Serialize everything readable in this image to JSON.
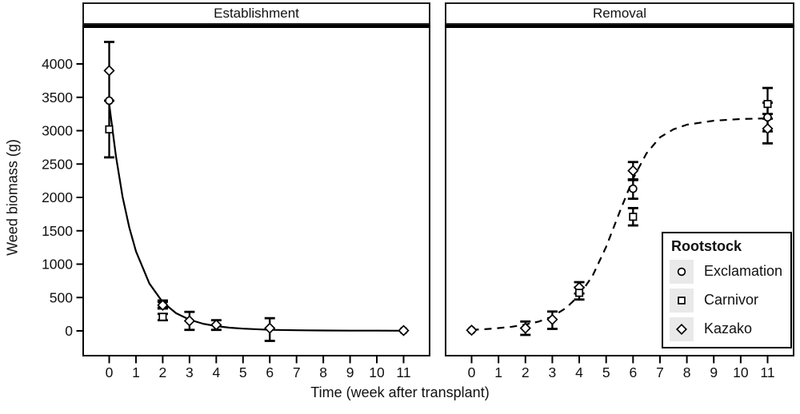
{
  "figure": {
    "xlabel": "Time (week after transplant)",
    "ylabel": "Weed biomass (g)",
    "legend": {
      "title": "Rootstock",
      "items": [
        {
          "marker": "circle",
          "label": "Exclamation"
        },
        {
          "marker": "square",
          "label": "Carnivor"
        },
        {
          "marker": "diamond",
          "label": "Kazako"
        }
      ]
    },
    "colors": {
      "foreground": "#000000",
      "background": "#ffffff",
      "legend_key_bg": "#e9e9e9"
    }
  },
  "chart_data": {
    "type": "scatter",
    "xlabel": "Time (week after transplant)",
    "ylabel": "Weed biomass (g)",
    "x_ticks": [
      0,
      1,
      2,
      3,
      4,
      5,
      6,
      7,
      8,
      9,
      10,
      11
    ],
    "y_ticks": [
      0,
      500,
      1000,
      1500,
      2000,
      2500,
      3000,
      3500,
      4000
    ],
    "xlim": [
      -1,
      12
    ],
    "ylim": [
      -380,
      4500
    ],
    "grid": false,
    "legend_position": "inside lower-right of Removal panel",
    "panels": [
      {
        "title": "Establishment",
        "line_style": "solid",
        "curve": [
          [
            0,
            3400
          ],
          [
            0.25,
            2620
          ],
          [
            0.5,
            2010
          ],
          [
            0.75,
            1550
          ],
          [
            1,
            1190
          ],
          [
            1.5,
            710
          ],
          [
            2,
            430
          ],
          [
            2.5,
            265
          ],
          [
            3,
            168
          ],
          [
            3.5,
            108
          ],
          [
            4,
            72
          ],
          [
            4.5,
            48
          ],
          [
            5,
            33
          ],
          [
            6,
            16
          ],
          [
            7,
            9
          ],
          [
            8,
            6
          ],
          [
            9,
            4
          ],
          [
            10,
            3
          ],
          [
            11,
            2
          ]
        ],
        "points": [
          {
            "series": "Kazako",
            "marker": "diamond",
            "x": 0,
            "y": 3900,
            "lo": 3450,
            "hi": 4330
          },
          {
            "series": "Exclamation",
            "marker": "circle",
            "x": 0,
            "y": 3450
          },
          {
            "series": "Carnivor",
            "marker": "square",
            "x": 0,
            "y": 3020,
            "lo": 2600,
            "hi": 3450
          },
          {
            "series": "Exclamation",
            "marker": "circle",
            "x": 2,
            "y": 400,
            "lo": 345,
            "hi": 455
          },
          {
            "series": "Kazako",
            "marker": "diamond",
            "x": 2,
            "y": 385,
            "lo": 335,
            "hi": 435
          },
          {
            "series": "Carnivor",
            "marker": "square",
            "x": 2,
            "y": 210,
            "lo": 160,
            "hi": 255
          },
          {
            "series": "Kazako",
            "marker": "diamond",
            "x": 3,
            "y": 150,
            "lo": 15,
            "hi": 285
          },
          {
            "series": "Kazako",
            "marker": "diamond",
            "x": 4,
            "y": 90,
            "lo": 15,
            "hi": 160
          },
          {
            "series": "Kazako",
            "marker": "diamond",
            "x": 6,
            "y": 40,
            "lo": -150,
            "hi": 190
          },
          {
            "series": "Exclamation",
            "marker": "circle",
            "x": 11,
            "y": 5
          },
          {
            "series": "Kazako",
            "marker": "diamond",
            "x": 11,
            "y": 5
          }
        ]
      },
      {
        "title": "Removal",
        "line_style": "dashed",
        "curve": [
          [
            0,
            15
          ],
          [
            0.5,
            25
          ],
          [
            1,
            42
          ],
          [
            1.5,
            62
          ],
          [
            2,
            95
          ],
          [
            2.5,
            140
          ],
          [
            3,
            215
          ],
          [
            3.5,
            340
          ],
          [
            4,
            530
          ],
          [
            4.5,
            830
          ],
          [
            5,
            1260
          ],
          [
            5.5,
            1780
          ],
          [
            6,
            2280
          ],
          [
            6.5,
            2660
          ],
          [
            7,
            2900
          ],
          [
            7.5,
            3020
          ],
          [
            8,
            3090
          ],
          [
            9,
            3150
          ],
          [
            10,
            3175
          ],
          [
            11,
            3185
          ]
        ],
        "points": [
          {
            "series": "Exclamation",
            "marker": "circle",
            "x": 0,
            "y": 10
          },
          {
            "series": "Kazako",
            "marker": "diamond",
            "x": 0,
            "y": 10
          },
          {
            "series": "Kazako",
            "marker": "diamond",
            "x": 2,
            "y": 40,
            "lo": -60,
            "hi": 140
          },
          {
            "series": "Kazako",
            "marker": "diamond",
            "x": 3,
            "y": 170,
            "lo": 30,
            "hi": 290
          },
          {
            "series": "Kazako",
            "marker": "diamond",
            "x": 4,
            "y": 650,
            "lo": 560,
            "hi": 730
          },
          {
            "series": "Carnivor",
            "marker": "square",
            "x": 4,
            "y": 570,
            "lo": 470,
            "hi": 650
          },
          {
            "series": "Kazako",
            "marker": "diamond",
            "x": 6,
            "y": 2400,
            "lo": 2270,
            "hi": 2530
          },
          {
            "series": "Exclamation",
            "marker": "circle",
            "x": 6,
            "y": 2130,
            "lo": 1980,
            "hi": 2260
          },
          {
            "series": "Carnivor",
            "marker": "square",
            "x": 6,
            "y": 1710,
            "lo": 1580,
            "hi": 1840
          },
          {
            "series": "Carnivor",
            "marker": "square",
            "x": 11,
            "y": 3400,
            "lo": 3180,
            "hi": 3640
          },
          {
            "series": "Exclamation",
            "marker": "circle",
            "x": 11,
            "y": 3200,
            "lo": 2990,
            "hi": 3420
          },
          {
            "series": "Kazako",
            "marker": "diamond",
            "x": 11,
            "y": 3030,
            "lo": 2810,
            "hi": 3250
          }
        ]
      }
    ]
  }
}
